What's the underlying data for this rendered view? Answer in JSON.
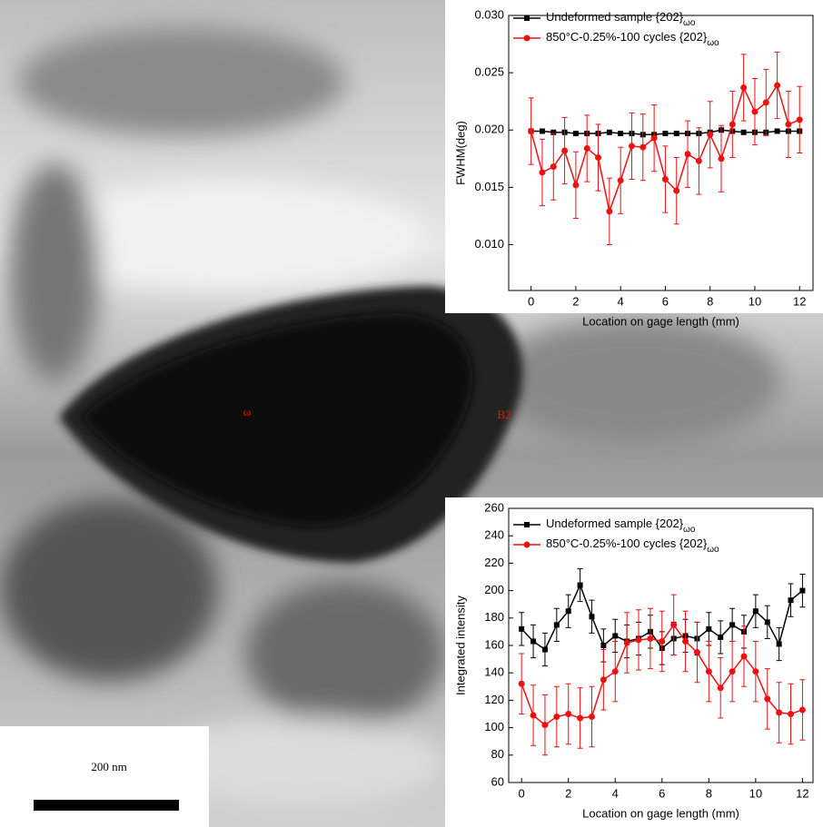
{
  "chart_data": [
    {
      "type": "line",
      "ylabel": "FWHM(deg)",
      "xlabel": "Location on gage length (mm)",
      "x": [
        0,
        0.5,
        1,
        1.5,
        2,
        2.5,
        3,
        3.5,
        4,
        4.5,
        5,
        5.5,
        6,
        6.5,
        7,
        7.5,
        8,
        8.5,
        9,
        9.5,
        10,
        10.5,
        11,
        11.5,
        12
      ],
      "xlim": [
        -1,
        12.6
      ],
      "xticks": [
        0,
        2,
        4,
        6,
        8,
        10,
        12
      ],
      "ylim": [
        0.006,
        0.03
      ],
      "yticks": [
        {
          "value": 0.01,
          "label": "0.010"
        },
        0.015,
        {
          "value": 0.02,
          "label": "0.020"
        },
        0.025,
        {
          "value": 0.03,
          "label": "0.030"
        }
      ],
      "series": [
        {
          "name": "Undeformed sample {202}",
          "name_subscript": "ωo",
          "color": "#000000",
          "marker": "square",
          "values": [
            0.0199,
            0.0199,
            0.0198,
            0.0198,
            0.0197,
            0.0197,
            0.0197,
            0.0198,
            0.0197,
            0.0197,
            0.0196,
            0.0196,
            0.0197,
            0.0197,
            0.0197,
            0.0197,
            0.0198,
            0.02,
            0.0199,
            0.0198,
            0.0198,
            0.0198,
            0.0199,
            0.0199,
            0.0199
          ]
        },
        {
          "name": "850°C-0.25%-100 cycles {202}",
          "name_subscript": "ωo",
          "color": "#ee1111",
          "marker": "circle",
          "values": [
            0.0199,
            0.0163,
            0.0168,
            0.0182,
            0.0152,
            0.0184,
            0.0176,
            0.0129,
            0.0156,
            0.0186,
            0.0185,
            0.0193,
            0.0157,
            0.0147,
            0.0179,
            0.0173,
            0.0196,
            0.0175,
            0.0205,
            0.0237,
            0.0216,
            0.0224,
            0.0239,
            0.0205,
            0.0209
          ],
          "errors": [
            0.0029,
            0.0029,
            0.0029,
            0.0029,
            0.0029,
            0.0029,
            0.0029,
            0.0029,
            0.0029,
            0.0029,
            0.0029,
            0.0029,
            0.0029,
            0.0029,
            0.0029,
            0.0029,
            0.0029,
            0.0029,
            0.0029,
            0.0029,
            0.0029,
            0.0029,
            0.0029,
            0.0029,
            0.0029
          ]
        }
      ]
    },
    {
      "type": "line",
      "ylabel": "Integrated intensity",
      "xlabel": "Location on gage length (mm)",
      "x": [
        0,
        0.5,
        1,
        1.5,
        2,
        2.5,
        3,
        3.5,
        4,
        4.5,
        5,
        5.5,
        6,
        6.5,
        7,
        7.5,
        8,
        8.5,
        9,
        9.5,
        10,
        10.5,
        11,
        11.5,
        12
      ],
      "xlim": [
        -0.55,
        12.45
      ],
      "xticks": [
        0,
        2,
        4,
        6,
        8,
        10,
        12
      ],
      "ylim": [
        60,
        260
      ],
      "yticks": [
        60,
        80,
        100,
        120,
        140,
        160,
        180,
        200,
        220,
        240,
        260
      ],
      "series": [
        {
          "name": "Undeformed sample {202}",
          "name_subscript": "ωo",
          "color": "#000000",
          "marker": "square",
          "values": [
            172,
            163,
            157,
            175,
            185,
            204,
            181,
            160,
            167,
            163,
            165,
            170,
            158,
            165,
            167,
            165,
            172,
            166,
            175,
            170,
            185,
            177,
            161,
            193,
            200
          ],
          "errors": [
            12,
            12,
            12,
            12,
            12,
            12,
            12,
            12,
            12,
            12,
            12,
            12,
            12,
            12,
            12,
            12,
            12,
            12,
            12,
            12,
            12,
            12,
            12,
            12,
            12
          ]
        },
        {
          "name": "850°C-0.25%-100 cycles {202}",
          "name_subscript": "ωo",
          "color": "#ee1111",
          "marker": "circle",
          "values": [
            132,
            109,
            102,
            108,
            110,
            107,
            108,
            135,
            141,
            162,
            164,
            165,
            163,
            175,
            163,
            155,
            141,
            129,
            141,
            152,
            141,
            121,
            111,
            110,
            113
          ],
          "errors": [
            22,
            22,
            22,
            22,
            22,
            22,
            22,
            22,
            22,
            22,
            22,
            22,
            22,
            22,
            22,
            22,
            22,
            22,
            22,
            22,
            22,
            22,
            22,
            22,
            22
          ]
        }
      ]
    }
  ],
  "micrograph": {
    "labels": [
      "ω",
      "B2"
    ],
    "scale_bar": "200 nm"
  }
}
